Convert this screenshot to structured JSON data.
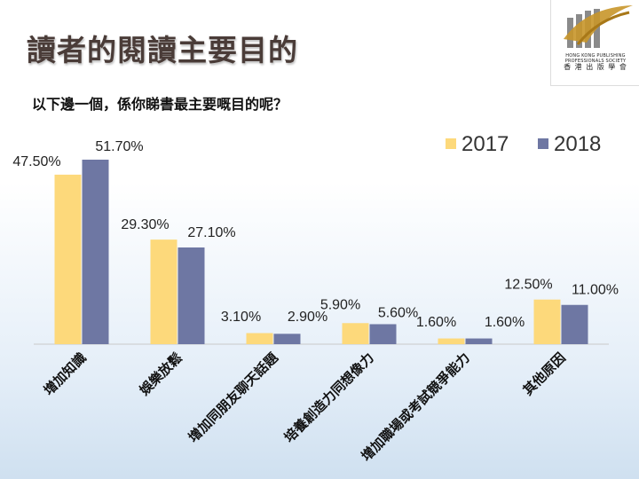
{
  "slide": {
    "title": "讀者的閱讀主要目的",
    "subtitle": "以下邊一個，係你睇書最主要嘅目的呢？"
  },
  "logo": {
    "line1": "HONG KONG PUBLISHING PROFESSIONALS SOCIETY",
    "line2": "香 港 出 版 學 會"
  },
  "colors": {
    "s2017": "#fdd97b",
    "s2018": "#6e77a3"
  },
  "chart_data": {
    "type": "bar",
    "categories": [
      "增加知識",
      "娛樂放鬆",
      "增加同朋友聊天話題",
      "培養創造力同想像力",
      "增加職場或考試競爭能力",
      "其他原因"
    ],
    "series": [
      {
        "name": "2017",
        "values": [
          47.5,
          29.3,
          3.1,
          5.9,
          1.6,
          12.5
        ],
        "labels": [
          "47.50%",
          "29.30%",
          "3.10%",
          "5.90%",
          "1.60%",
          "12.50%"
        ]
      },
      {
        "name": "2018",
        "values": [
          51.7,
          27.1,
          2.9,
          5.6,
          1.6,
          11.0
        ],
        "labels": [
          "51.70%",
          "27.10%",
          "2.90%",
          "5.60%",
          "1.60%",
          "11.00%"
        ]
      }
    ],
    "ylim": [
      0,
      55
    ],
    "grid": false,
    "legend": "top-right"
  }
}
